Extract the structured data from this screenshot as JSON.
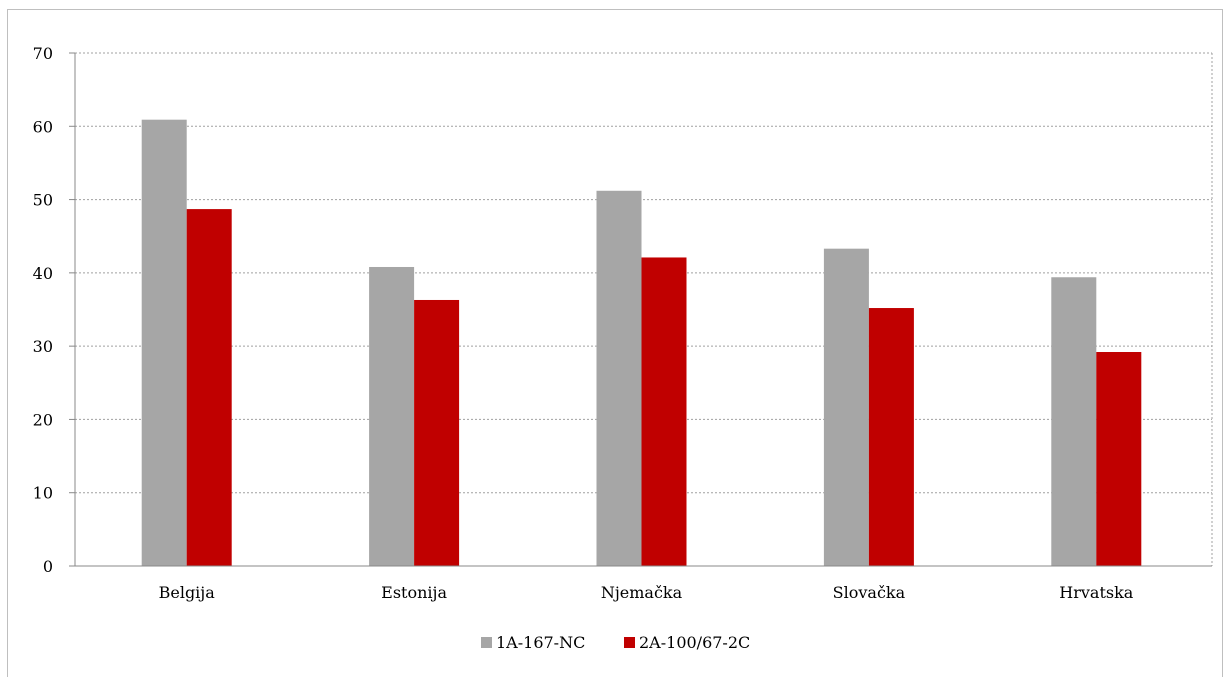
{
  "chart_data": {
    "type": "bar",
    "title": "",
    "xlabel": "",
    "ylabel": "",
    "categories": [
      "Belgija",
      "Estonija",
      "Njemačka",
      "Slovačka",
      "Hrvatska"
    ],
    "series": [
      {
        "name": "1A-167-NC",
        "color": "#a6a6a6",
        "values": [
          60.9,
          40.8,
          51.2,
          43.3,
          39.4
        ]
      },
      {
        "name": "2A-100/67-2C",
        "color": "#c00000",
        "values": [
          48.7,
          36.3,
          42.1,
          35.2,
          29.2
        ]
      }
    ],
    "ylim": [
      0,
      70
    ],
    "yticks": [
      0,
      10,
      20,
      30,
      40,
      50,
      60,
      70
    ],
    "grid": true,
    "legend_position": "bottom"
  }
}
